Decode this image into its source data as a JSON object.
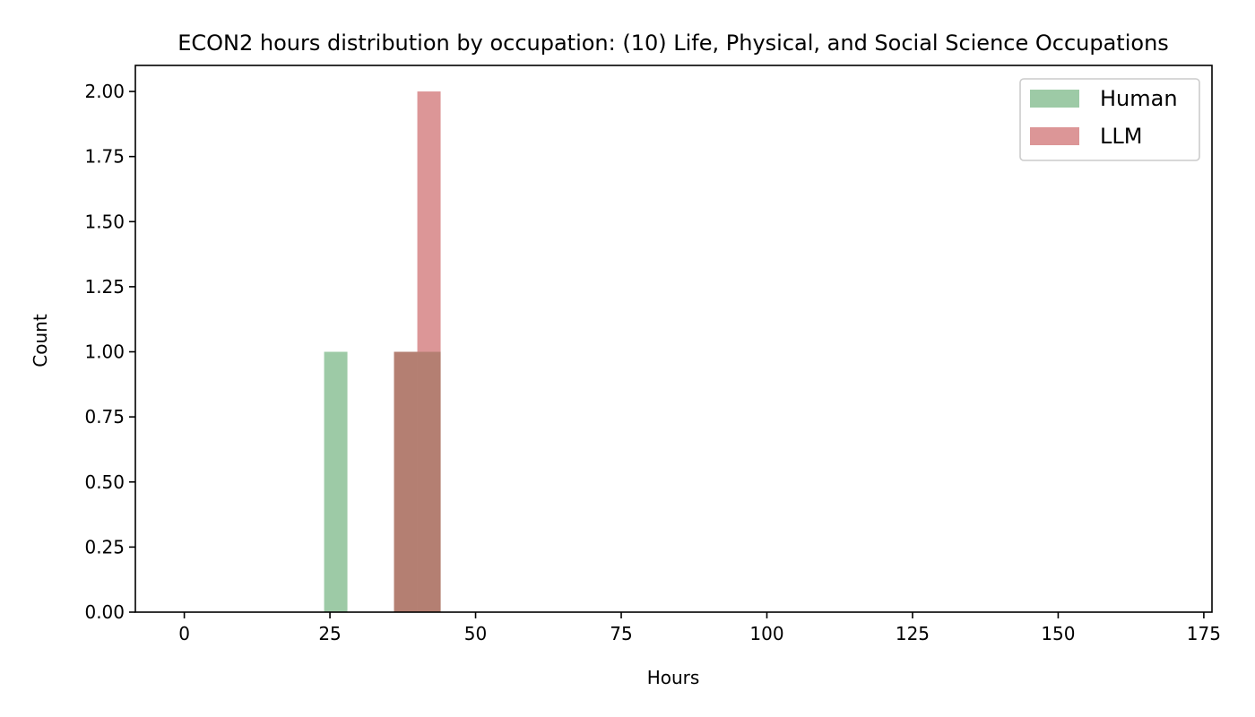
{
  "chart_data": {
    "type": "bar",
    "title": "ECON2 hours distribution by occupation: (10) Life, Physical, and Social Science Occupations",
    "xlabel": "Hours",
    "ylabel": "Count",
    "xlim": [
      -8.4,
      176.4
    ],
    "ylim": [
      0,
      2.1
    ],
    "xticks": [
      0,
      25,
      50,
      75,
      100,
      125,
      150,
      175
    ],
    "yticks": [
      0.0,
      0.25,
      0.5,
      0.75,
      1.0,
      1.25,
      1.5,
      1.75,
      2.0
    ],
    "xtick_labels": [
      "0",
      "25",
      "50",
      "75",
      "100",
      "125",
      "150",
      "175"
    ],
    "ytick_labels": [
      "0.00",
      "0.25",
      "0.50",
      "0.75",
      "1.00",
      "1.25",
      "1.50",
      "1.75",
      "2.00"
    ],
    "grid": false,
    "legend": "top-right",
    "series": [
      {
        "name": "Human",
        "color": "#9dcaa6",
        "bins": [
          {
            "x0": 24,
            "x1": 28,
            "value": 1
          },
          {
            "x0": 36,
            "x1": 44,
            "value": 1
          }
        ]
      },
      {
        "name": "LLM",
        "color": "#dc9697",
        "bins": [
          {
            "x0": 36,
            "x1": 40,
            "value": 1
          },
          {
            "x0": 40,
            "x1": 44,
            "value": 2
          }
        ]
      }
    ],
    "overlap_color": "#b47f72"
  }
}
